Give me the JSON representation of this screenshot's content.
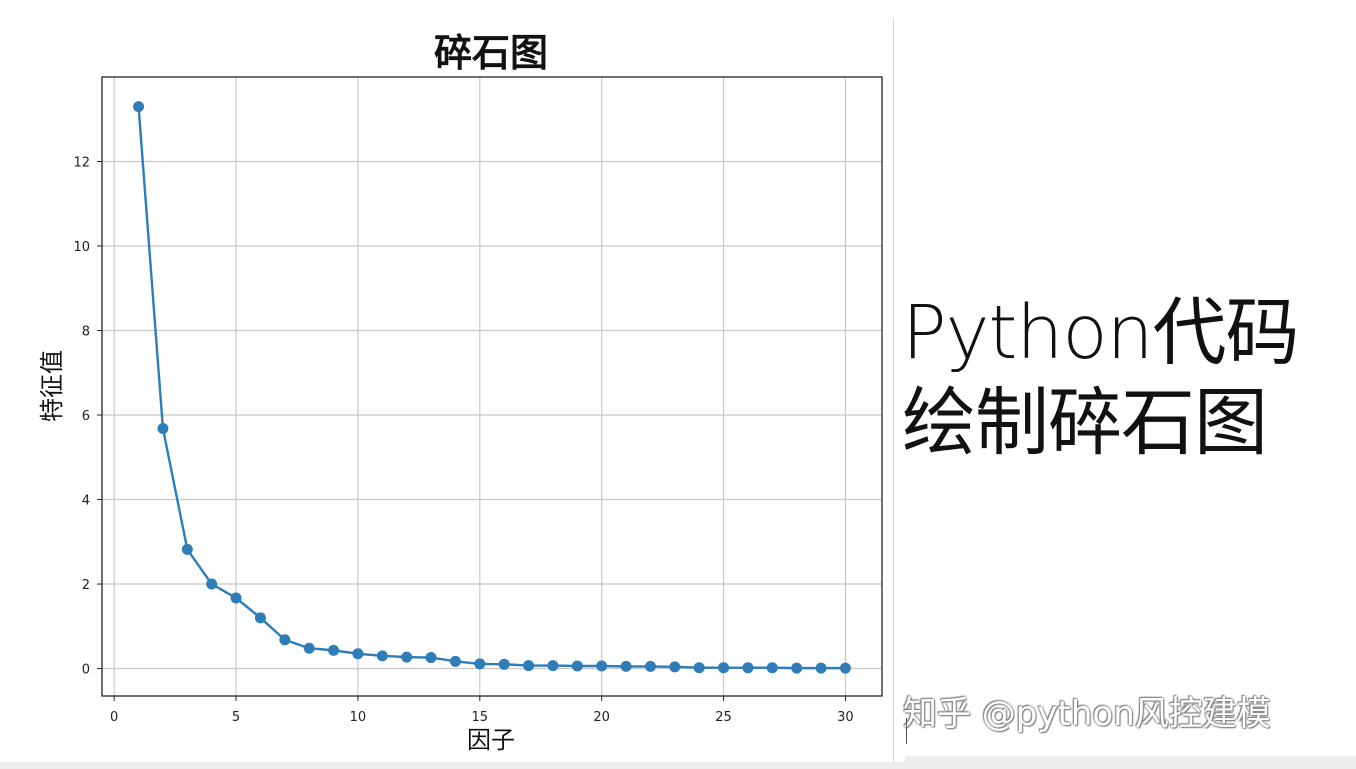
{
  "chart_data": {
    "type": "line",
    "title": "碎石图",
    "xlabel": "因子",
    "ylabel": "特征值",
    "xlim": [
      -0.5,
      31.5
    ],
    "ylim": [
      -0.65,
      14.0
    ],
    "xticks": [
      0,
      5,
      10,
      15,
      20,
      25,
      30
    ],
    "yticks": [
      0,
      2,
      4,
      6,
      8,
      10,
      12
    ],
    "grid": true,
    "markers": true,
    "line_color": "#2e7db8",
    "series": [
      {
        "x": [
          1,
          2,
          3,
          4,
          5,
          6,
          7,
          8,
          9,
          10,
          11,
          12,
          13,
          14,
          15,
          16,
          17,
          18,
          19,
          20,
          21,
          22,
          23,
          24,
          25,
          26,
          27,
          28,
          29,
          30
        ],
        "values": [
          13.3,
          5.68,
          2.82,
          2.0,
          1.67,
          1.2,
          0.68,
          0.48,
          0.43,
          0.35,
          0.3,
          0.27,
          0.26,
          0.17,
          0.11,
          0.1,
          0.07,
          0.07,
          0.06,
          0.06,
          0.05,
          0.05,
          0.04,
          0.02,
          0.02,
          0.02,
          0.02,
          0.01,
          0.01,
          0.01
        ]
      }
    ]
  },
  "side_title": {
    "line1": "Python代码",
    "line2": "绘制碎石图"
  },
  "watermark": "知乎 @python风控建模"
}
